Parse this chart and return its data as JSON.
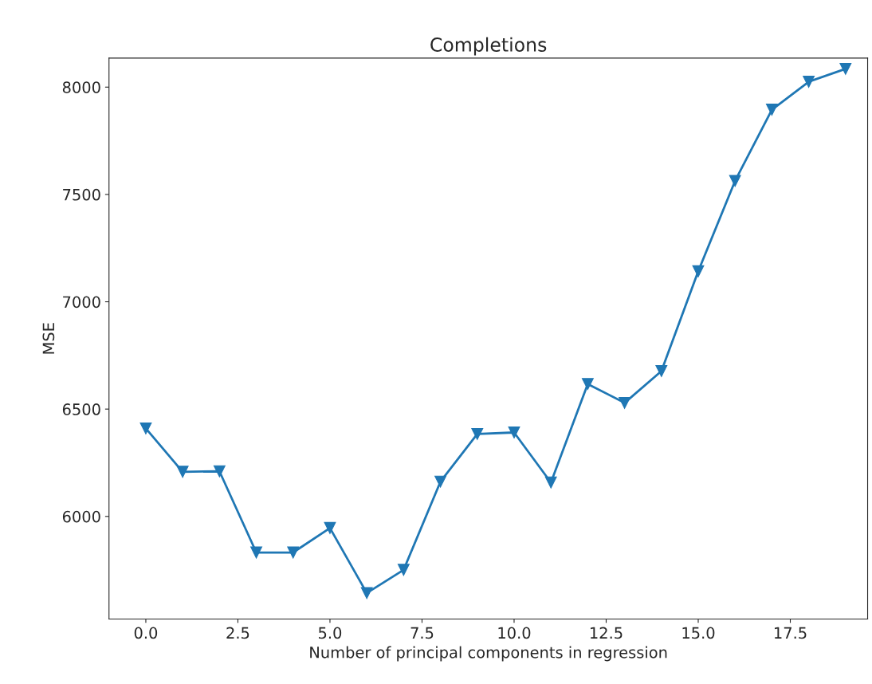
{
  "chart_data": {
    "type": "line",
    "title": "Completions",
    "xlabel": "Number of principal components in regression",
    "ylabel": "MSE",
    "x": [
      0,
      1,
      2,
      3,
      4,
      5,
      6,
      7,
      8,
      9,
      10,
      11,
      12,
      13,
      14,
      15,
      16,
      17,
      18,
      19
    ],
    "series": [
      {
        "color": "#1f77b4",
        "values": [
          6410,
          6208,
          6210,
          5832,
          5832,
          5946,
          5643,
          5751,
          6162,
          6384,
          6391,
          6158,
          6617,
          6529,
          6677,
          7142,
          7563,
          7895,
          8025,
          8085
        ]
      }
    ],
    "xlim": [
      -1.0,
      19.6
    ],
    "xticks": [
      {
        "value": 0,
        "label": "0.0"
      },
      {
        "value": 2.5,
        "label": "2.5"
      },
      {
        "value": 5,
        "label": "5.0"
      },
      {
        "value": 7.5,
        "label": "7.5"
      },
      {
        "value": 10,
        "label": "10.0"
      },
      {
        "value": 12.5,
        "label": "12.5"
      },
      {
        "value": 15,
        "label": "15.0"
      },
      {
        "value": 17.5,
        "label": "17.5"
      }
    ],
    "ylim": [
      5522,
      8135
    ],
    "yticks": [
      6000,
      6500,
      7000,
      7500,
      8000
    ],
    "marker": "triangle",
    "line_style": "solid",
    "grid": false
  }
}
